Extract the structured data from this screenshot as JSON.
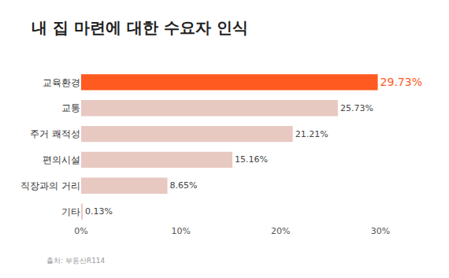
{
  "chart_data": {
    "type": "bar",
    "orientation": "horizontal",
    "title": "내 집 마련에 대한 수요자 인식",
    "categories": [
      "교육환경",
      "교통",
      "주거 쾌적성",
      "편의시설",
      "직장과의 거리",
      "기타"
    ],
    "values": [
      29.73,
      25.73,
      21.21,
      15.16,
      8.65,
      0.13
    ],
    "value_labels": [
      "29.73%",
      "25.73%",
      "21.21%",
      "15.16%",
      "8.65%",
      "0.13%"
    ],
    "colors": [
      "#ff5a1f",
      "#e8c9c1",
      "#e8c9c1",
      "#e8c9c1",
      "#e8c9c1",
      "#e8c9c1"
    ],
    "data_labels": true,
    "xlim": [
      0,
      30
    ],
    "xticks": [
      {
        "value": 0,
        "label": "0%"
      },
      {
        "value": 10,
        "label": "10%"
      },
      {
        "value": 20,
        "label": "20%"
      },
      {
        "value": 30,
        "label": "30%"
      }
    ],
    "grid": false,
    "annotations": [
      "출처: 부동산R114"
    ]
  }
}
